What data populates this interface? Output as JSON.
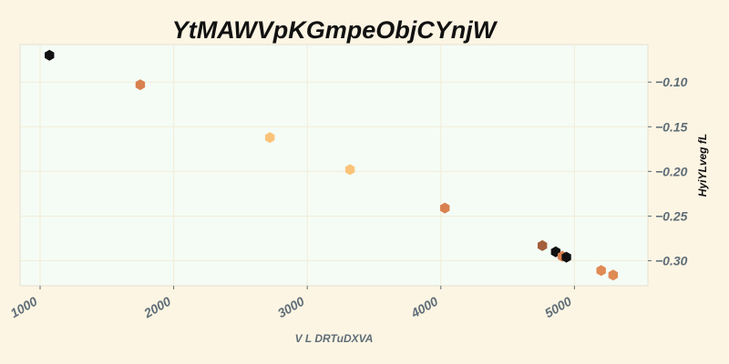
{
  "chart_data": {
    "type": "scatter",
    "title": "YtMAWVpKGmpeObjCYnjW",
    "xlabel": "V L DRTuDXVA",
    "ylabel": "HyiYLveg  fL",
    "xlim": [
      850,
      5550
    ],
    "ylim": [
      -0.328,
      -0.058
    ],
    "xticks": [
      1000,
      2000,
      3000,
      4000,
      5000
    ],
    "yticks": [
      -0.1,
      -0.15,
      -0.2,
      -0.25,
      -0.3
    ],
    "xtick_labels": [
      "1000",
      "2000",
      "3000",
      "4000",
      "5000"
    ],
    "ytick_labels": [
      "−0.10",
      "−0.15",
      "−0.20",
      "−0.25",
      "−0.30"
    ],
    "y_axis_side": "right",
    "grid": true,
    "marker": "hexagon",
    "points": [
      {
        "x": 1070,
        "y": -0.07,
        "color": "#111111"
      },
      {
        "x": 1750,
        "y": -0.103,
        "color": "#d9804f"
      },
      {
        "x": 2720,
        "y": -0.162,
        "color": "#fbc37a"
      },
      {
        "x": 3320,
        "y": -0.198,
        "color": "#fbc37a"
      },
      {
        "x": 4030,
        "y": -0.241,
        "color": "#d9804f"
      },
      {
        "x": 4760,
        "y": -0.283,
        "color": "#a45f3c"
      },
      {
        "x": 4860,
        "y": -0.29,
        "color": "#111111"
      },
      {
        "x": 4910,
        "y": -0.295,
        "color": "#d9804f"
      },
      {
        "x": 4940,
        "y": -0.296,
        "color": "#111111"
      },
      {
        "x": 5200,
        "y": -0.311,
        "color": "#e08a55"
      },
      {
        "x": 5290,
        "y": -0.316,
        "color": "#e08a55"
      }
    ]
  },
  "colors": {
    "page_background": "#fdf5e3",
    "plot_background": "#f4fcf5",
    "grid": "#f3ecd6",
    "tick_text": "#5f6e78",
    "title_text": "#111111",
    "spine": "#e6e0d0"
  }
}
